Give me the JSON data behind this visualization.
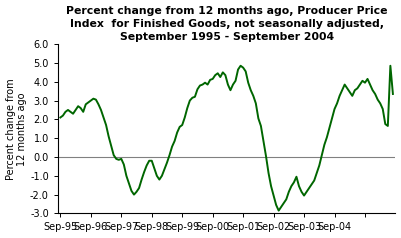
{
  "title": "Percent change from 12 months ago, Producer Price\nIndex  for Finished Goods, not seasonally adjusted,\nSeptember 1995 - September 2004",
  "ylabel": "Percent change from\n12 months ago",
  "ylim": [
    -3.0,
    6.0
  ],
  "yticks": [
    -3.0,
    -2.0,
    -1.0,
    0.0,
    1.0,
    2.0,
    3.0,
    4.0,
    5.0,
    6.0
  ],
  "line_color": "#006600",
  "line_width": 1.4,
  "bg_color": "#ffffff",
  "xtick_labels": [
    "Sep-95",
    "Sep-96",
    "Sep-97",
    "Sep-98",
    "Sep-99",
    "Sep-00",
    "Sep-01",
    "Sep-02",
    "Sep-03",
    "Sep-04"
  ],
  "data": [
    2.1,
    2.2,
    2.4,
    2.5,
    2.4,
    2.3,
    2.5,
    2.7,
    2.6,
    2.4,
    2.8,
    2.9,
    3.0,
    3.1,
    3.05,
    2.8,
    2.5,
    2.1,
    1.7,
    1.1,
    0.6,
    0.1,
    -0.1,
    -0.15,
    -0.1,
    -0.4,
    -1.0,
    -1.4,
    -1.8,
    -2.0,
    -1.85,
    -1.65,
    -1.2,
    -0.8,
    -0.45,
    -0.2,
    -0.2,
    -0.6,
    -1.0,
    -1.2,
    -1.0,
    -0.65,
    -0.3,
    0.1,
    0.55,
    0.85,
    1.3,
    1.6,
    1.7,
    2.1,
    2.6,
    3.0,
    3.15,
    3.2,
    3.6,
    3.8,
    3.85,
    3.95,
    3.85,
    4.1,
    4.15,
    4.35,
    4.45,
    4.25,
    4.5,
    4.35,
    3.85,
    3.55,
    3.85,
    4.05,
    4.65,
    4.85,
    4.75,
    4.55,
    3.95,
    3.55,
    3.25,
    2.85,
    2.05,
    1.65,
    0.85,
    0.05,
    -0.85,
    -1.55,
    -2.05,
    -2.55,
    -2.85,
    -2.65,
    -2.45,
    -2.25,
    -1.85,
    -1.55,
    -1.35,
    -1.05,
    -1.55,
    -1.85,
    -2.05,
    -1.85,
    -1.65,
    -1.45,
    -1.25,
    -0.85,
    -0.45,
    0.1,
    0.65,
    1.05,
    1.55,
    2.05,
    2.55,
    2.85,
    3.25,
    3.55,
    3.85,
    3.65,
    3.45,
    3.25,
    3.55,
    3.65,
    3.85,
    4.05,
    3.95,
    4.15,
    3.85,
    3.55,
    3.35,
    3.05,
    2.85,
    2.55,
    1.75,
    1.65,
    4.85,
    3.35
  ]
}
